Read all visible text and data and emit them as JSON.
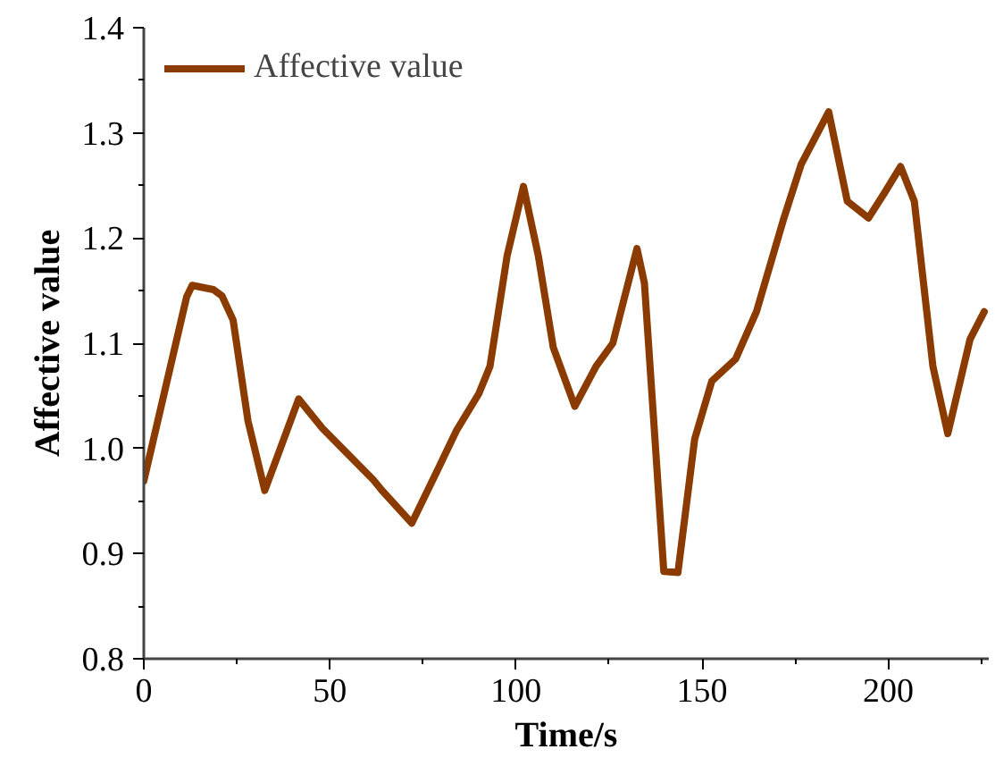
{
  "chart_data": {
    "type": "line",
    "xlabel": "Time/s",
    "ylabel": "Affective value",
    "x": [
      0,
      11.5,
      13,
      18.7,
      21,
      24,
      28,
      32.5,
      41.6,
      48,
      61.7,
      64,
      72,
      79.4,
      84,
      90,
      93,
      97.6,
      102,
      106,
      110,
      115.8,
      121.5,
      126,
      132.5,
      134.5,
      137,
      139.7,
      143.5,
      148,
      152.6,
      159,
      164.6,
      171.8,
      176.6,
      184,
      189,
      194.7,
      199,
      203.3,
      207,
      212,
      216,
      222,
      225.8
    ],
    "series": [
      {
        "name": "Affective value",
        "color": "#8b3a00",
        "values": [
          0.969,
          1.144,
          1.155,
          1.151,
          1.145,
          1.122,
          1.026,
          0.96,
          1.047,
          1.019,
          0.97,
          0.96,
          0.929,
          0.983,
          1.017,
          1.052,
          1.078,
          1.183,
          1.249,
          1.183,
          1.096,
          1.04,
          1.078,
          1.1,
          1.19,
          1.157,
          1.026,
          0.883,
          0.882,
          1.009,
          1.064,
          1.085,
          1.13,
          1.217,
          1.27,
          1.32,
          1.235,
          1.219,
          1.243,
          1.268,
          1.235,
          1.078,
          1.014,
          1.104,
          1.13
        ]
      }
    ],
    "xlim": [
      0,
      227
    ],
    "xticks": [
      0,
      50,
      100,
      150,
      200
    ],
    "ylim": [
      0.8,
      1.4
    ],
    "yticks": [
      0.8,
      0.9,
      {
        "value": 1,
        "label": "1.0"
      },
      1.1,
      1.2,
      1.3,
      1.4
    ],
    "grid": false,
    "legend": "top left",
    "marker": "none",
    "line_style": "solid"
  }
}
